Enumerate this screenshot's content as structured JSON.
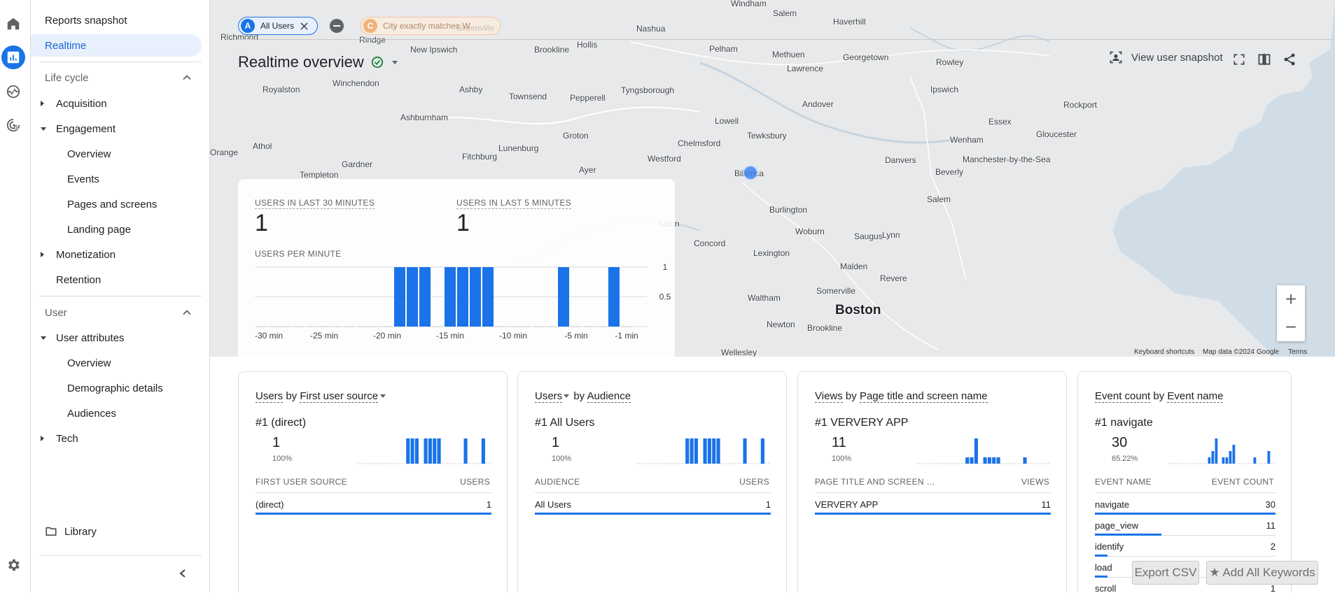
{
  "nav": {
    "reports_snapshot": "Reports snapshot",
    "realtime": "Realtime",
    "lifecycle": "Life cycle",
    "acquisition": "Acquisition",
    "engagement": "Engagement",
    "eng_overview": "Overview",
    "events": "Events",
    "pages_screens": "Pages and screens",
    "landing_page": "Landing page",
    "monetization": "Monetization",
    "retention": "Retention",
    "user": "User",
    "user_attributes": "User attributes",
    "ua_overview": "Overview",
    "demographic": "Demographic details",
    "audiences": "Audiences",
    "tech": "Tech",
    "library": "Library"
  },
  "filters": {
    "chip_a_letter": "A",
    "chip_a_label": "All Users",
    "chip_c_letter": "C",
    "chip_c_label": "City exactly matches W"
  },
  "header": {
    "title": "Realtime overview",
    "view_snapshot": "View user snapshot"
  },
  "map": {
    "towns": [
      "Windham",
      "Salem",
      "Haverhill",
      "Richmond",
      "Rindge",
      "Greenville",
      "Nashua",
      "Hollis",
      "New Ipswich",
      "Brookline",
      "Pelham",
      "Methuen",
      "Lawrence",
      "Georgetown",
      "Rowley",
      "Royalston",
      "Winchendon",
      "Ashby",
      "Townsend",
      "Pepperell",
      "Tyngsborough",
      "Andover",
      "Ipswich",
      "Ashburnham",
      "Groton",
      "Lowell",
      "Tewksbury",
      "Essex",
      "Rockport",
      "Gloucester",
      "Athol",
      "Fitchburg",
      "Lunenburg",
      "Chelmsford",
      "Westford",
      "Wenham",
      "Danvers",
      "Manchester-by-the-Sea",
      "Beverly",
      "Gardner",
      "Templeton",
      "Ayer",
      "Billerica",
      "Burlington",
      "Salem",
      "Woburn",
      "Saugus",
      "Lynn",
      "Concord",
      "Lexington",
      "Malden",
      "Revere",
      "Somerville",
      "Waltham",
      "Boston",
      "Newton",
      "Brookline",
      "Wellesley",
      "Orange",
      "Acton"
    ],
    "keyboard": "Keyboard shortcuts",
    "mapdata": "Map data ©2024 Google",
    "terms": "Terms"
  },
  "realtime": {
    "label_30": "USERS IN LAST 30 MINUTES",
    "value_30": "1",
    "label_5": "USERS IN LAST 5 MINUTES",
    "value_5": "1",
    "per_minute": "USERS PER MINUTE",
    "y_ticks": [
      "1",
      "0.5"
    ],
    "x_ticks": [
      "-30 min",
      "-25 min",
      "-20 min",
      "-15 min",
      "-10 min",
      "-5 min",
      "-1 min"
    ]
  },
  "chart_data": {
    "type": "bar",
    "title": "",
    "xlabel": "",
    "ylabel": "",
    "ylim": [
      0,
      1
    ],
    "x_ticks": [
      "-30 min",
      "-25 min",
      "-20 min",
      "-15 min",
      "-10 min",
      "-5 min",
      "-1 min"
    ],
    "values": [
      0,
      0,
      0,
      0,
      0,
      0,
      0,
      0,
      0,
      0,
      0,
      1,
      1,
      1,
      0,
      1,
      1,
      1,
      1,
      0,
      0,
      0,
      0,
      0,
      1,
      0,
      0,
      0,
      1,
      0
    ]
  },
  "cards": [
    {
      "title_metric": "Users",
      "title_by": "by",
      "title_dim": "First user source",
      "top_label": "#1  (direct)",
      "top_value": "1",
      "top_pct": "100%",
      "col1": "FIRST USER SOURCE",
      "col2": "USERS",
      "rows": [
        {
          "k": "(direct)",
          "v": "1",
          "frac": 1.0
        }
      ],
      "spark": [
        0,
        0,
        0,
        0,
        0,
        0,
        0,
        0,
        0,
        0,
        0,
        1,
        1,
        1,
        0,
        1,
        1,
        1,
        1,
        0,
        0,
        0,
        0,
        0,
        1,
        0,
        0,
        0,
        1,
        0
      ]
    },
    {
      "title_metric": "Users",
      "title_by": "by",
      "title_dim": "Audience",
      "top_label": "#1  All Users",
      "top_value": "1",
      "top_pct": "100%",
      "col1": "AUDIENCE",
      "col2": "USERS",
      "rows": [
        {
          "k": "All Users",
          "v": "1",
          "frac": 1.0
        }
      ],
      "spark": [
        0,
        0,
        0,
        0,
        0,
        0,
        0,
        0,
        0,
        0,
        0,
        1,
        1,
        1,
        0,
        1,
        1,
        1,
        1,
        0,
        0,
        0,
        0,
        0,
        1,
        0,
        0,
        0,
        1,
        0
      ]
    },
    {
      "title_metric": "Views",
      "title_by": "by",
      "title_dim": "Page title and screen name",
      "top_label": "#1  VERVERY APP",
      "top_value": "11",
      "top_pct": "100%",
      "col1": "PAGE TITLE AND SCREEN …",
      "col2": "VIEWS",
      "rows": [
        {
          "k": "VERVERY APP",
          "v": "11",
          "frac": 1.0
        }
      ],
      "spark": [
        0,
        0,
        0,
        0,
        0,
        0,
        0,
        0,
        0,
        0,
        0,
        0.25,
        0.25,
        1,
        0,
        0.25,
        0.25,
        0.25,
        0.25,
        0,
        0,
        0,
        0,
        0,
        0.25,
        0,
        0,
        0,
        0,
        0
      ]
    },
    {
      "title_metric": "Event count",
      "title_by": "by",
      "title_dim": "Event name",
      "top_label": "#1  navigate",
      "top_value": "30",
      "top_pct": "65.22%",
      "col1": "EVENT NAME",
      "col2": "EVENT COUNT",
      "rows": [
        {
          "k": "navigate",
          "v": "30",
          "frac": 1.0
        },
        {
          "k": "page_view",
          "v": "11",
          "frac": 0.37
        },
        {
          "k": "identify",
          "v": "2",
          "frac": 0.07
        },
        {
          "k": "load",
          "v": "",
          "frac": 0.07
        },
        {
          "k": "scroll",
          "v": "1",
          "frac": 0.03
        }
      ],
      "spark": [
        0,
        0,
        0,
        0,
        0,
        0,
        0,
        0,
        0,
        0,
        0,
        0.25,
        0.5,
        1,
        0,
        0.25,
        0.25,
        0.5,
        0.75,
        0,
        0,
        0,
        0,
        0,
        0.25,
        0,
        0,
        0,
        0.5,
        0
      ]
    }
  ],
  "buttons": {
    "export_csv": "Export CSV",
    "add_keywords": "★ Add All Keywords"
  }
}
